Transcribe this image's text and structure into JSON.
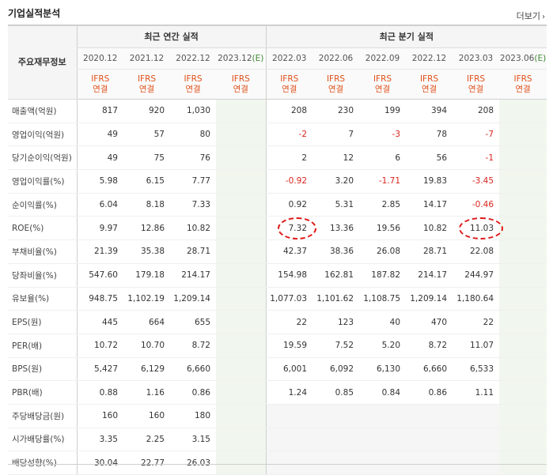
{
  "title": "기업실적분석",
  "more_label": "더보기",
  "header": {
    "corner_label": "주요재무정보",
    "annual_group_label": "최근 연간 실적",
    "quarter_group_label": "최근 분기 실적",
    "periods": [
      "2020.12",
      "2021.12",
      "2022.12",
      "2023.12",
      "2022.03",
      "2022.06",
      "2022.09",
      "2022.12",
      "2023.03",
      "2023.06"
    ],
    "estimate_mark": "(E)",
    "basis_line1": "IFRS",
    "basis_line2": "연결"
  },
  "rows": [
    {
      "label": "매출액(억원)",
      "values": [
        "817",
        "920",
        "1,030",
        "",
        "208",
        "230",
        "199",
        "394",
        "208",
        ""
      ]
    },
    {
      "label": "영업이익(억원)",
      "values": [
        "49",
        "57",
        "80",
        "",
        "-2",
        "7",
        "-3",
        "78",
        "-7",
        ""
      ]
    },
    {
      "label": "당기순이익(억원)",
      "values": [
        "49",
        "75",
        "76",
        "",
        "2",
        "12",
        "6",
        "56",
        "-1",
        ""
      ]
    },
    {
      "label": "영업이익률(%)",
      "values": [
        "5.98",
        "6.15",
        "7.77",
        "",
        "-0.92",
        "3.20",
        "-1.71",
        "19.83",
        "-3.45",
        ""
      ]
    },
    {
      "label": "순이익률(%)",
      "values": [
        "6.04",
        "8.18",
        "7.33",
        "",
        "0.92",
        "5.31",
        "2.85",
        "14.17",
        "-0.46",
        ""
      ]
    },
    {
      "label": "ROE(%)",
      "values": [
        "9.97",
        "12.86",
        "10.82",
        "",
        "7.32",
        "13.36",
        "19.56",
        "10.82",
        "11.03",
        ""
      ]
    },
    {
      "label": "부채비율(%)",
      "values": [
        "21.39",
        "35.38",
        "28.71",
        "",
        "42.37",
        "38.36",
        "26.08",
        "28.71",
        "22.08",
        ""
      ]
    },
    {
      "label": "당좌비율(%)",
      "values": [
        "547.60",
        "179.18",
        "214.17",
        "",
        "154.98",
        "162.81",
        "187.82",
        "214.17",
        "244.97",
        ""
      ]
    },
    {
      "label": "유보율(%)",
      "values": [
        "948.75",
        "1,102.19",
        "1,209.14",
        "",
        "1,077.03",
        "1,101.62",
        "1,108.75",
        "1,209.14",
        "1,180.64",
        ""
      ]
    },
    {
      "label": "EPS(원)",
      "values": [
        "445",
        "664",
        "655",
        "",
        "22",
        "123",
        "40",
        "470",
        "22",
        ""
      ]
    },
    {
      "label": "PER(배)",
      "values": [
        "10.72",
        "10.70",
        "8.72",
        "",
        "19.59",
        "7.52",
        "5.20",
        "8.72",
        "11.07",
        ""
      ]
    },
    {
      "label": "BPS(원)",
      "values": [
        "5,427",
        "6,129",
        "6,660",
        "",
        "6,001",
        "6,092",
        "6,130",
        "6,660",
        "6,533",
        ""
      ]
    },
    {
      "label": "PBR(배)",
      "values": [
        "0.88",
        "1.16",
        "0.86",
        "",
        "1.24",
        "0.85",
        "0.84",
        "0.86",
        "1.11",
        ""
      ]
    },
    {
      "label": "주당배당금(원)",
      "values": [
        "160",
        "160",
        "180",
        "",
        "",
        "",
        "",
        "",
        "",
        ""
      ]
    },
    {
      "label": "시가배당률(%)",
      "values": [
        "3.35",
        "2.25",
        "3.15",
        "",
        "",
        "",
        "",
        "",
        "",
        ""
      ]
    },
    {
      "label": "배당성향(%)",
      "values": [
        "30.04",
        "22.77",
        "26.03",
        "",
        "",
        "",
        "",
        "",
        "",
        ""
      ]
    }
  ],
  "colors": {
    "negative": "#d9241c",
    "basis": "#e0501a",
    "estimate_bg": "#f1f7ee",
    "highlight_circle": "#e01818"
  },
  "highlighted_cells": [
    {
      "row": 5,
      "col": 4
    },
    {
      "row": 5,
      "col": 8
    }
  ]
}
